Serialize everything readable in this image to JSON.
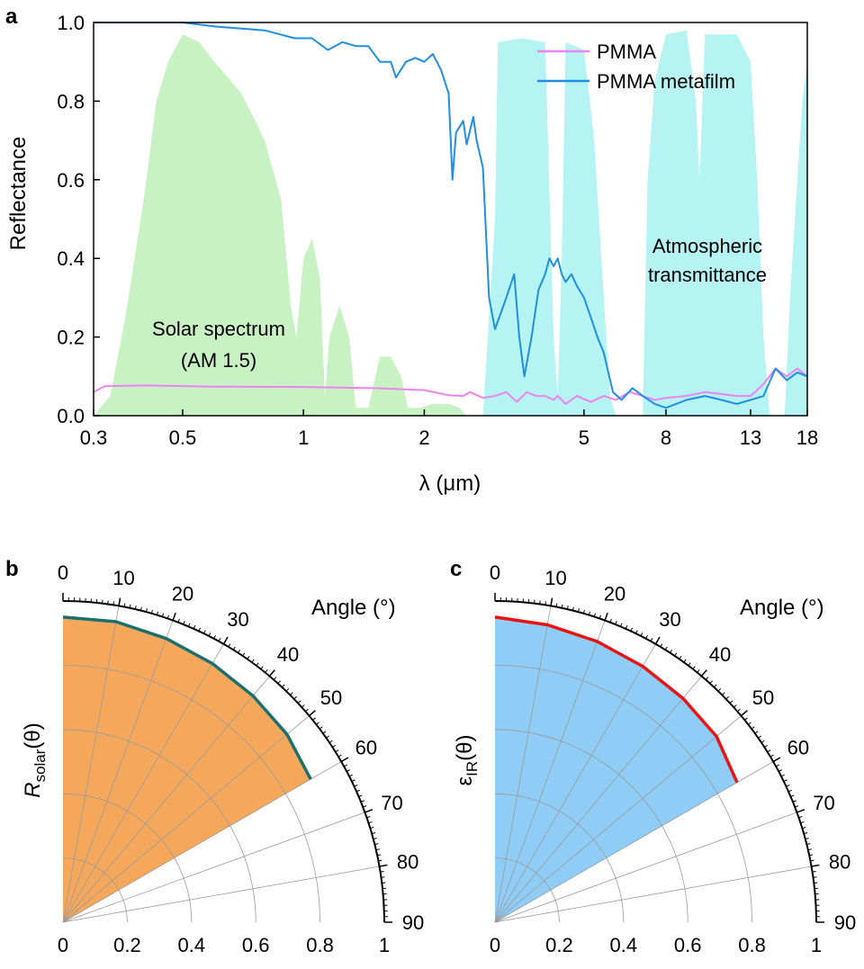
{
  "chart_data": [
    {
      "panel": "a",
      "type": "line",
      "xscale": "log",
      "xlim": [
        0.3,
        18
      ],
      "ylim": [
        0,
        1.0
      ],
      "xlabel": "λ (μm)",
      "ylabel": "Reflectance",
      "x_ticks": [
        0.3,
        0.5,
        1,
        2,
        5,
        8,
        13,
        18
      ],
      "x_tick_labels": [
        "0.3",
        "0.5",
        "1",
        "2",
        "5",
        "8",
        "13",
        "18"
      ],
      "y_ticks": [
        0.0,
        0.2,
        0.4,
        0.6,
        0.8,
        1.0
      ],
      "y_tick_labels": [
        "0.0",
        "0.2",
        "0.4",
        "0.6",
        "0.8",
        "1.0"
      ],
      "legend": [
        "PMMA",
        "PMMA metafilm"
      ],
      "annotations": {
        "solar_line1": "Solar spectrum",
        "solar_line2": "(AM 1.5)",
        "atmo_line1": "Atmospheric",
        "atmo_line2": "transmittance"
      },
      "background_areas": [
        {
          "name": "Solar spectrum (AM 1.5)",
          "color": "#c9f2c4",
          "points": [
            [
              0.3,
              0.0
            ],
            [
              0.33,
              0.05
            ],
            [
              0.36,
              0.25
            ],
            [
              0.4,
              0.55
            ],
            [
              0.43,
              0.8
            ],
            [
              0.46,
              0.9
            ],
            [
              0.5,
              0.97
            ],
            [
              0.55,
              0.95
            ],
            [
              0.6,
              0.9
            ],
            [
              0.7,
              0.82
            ],
            [
              0.75,
              0.76
            ],
            [
              0.8,
              0.7
            ],
            [
              0.88,
              0.55
            ],
            [
              0.93,
              0.28
            ],
            [
              0.96,
              0.2
            ],
            [
              1.0,
              0.4
            ],
            [
              1.05,
              0.45
            ],
            [
              1.1,
              0.35
            ],
            [
              1.13,
              0.05
            ],
            [
              1.16,
              0.2
            ],
            [
              1.23,
              0.28
            ],
            [
              1.3,
              0.2
            ],
            [
              1.35,
              0.02
            ],
            [
              1.45,
              0.02
            ],
            [
              1.55,
              0.15
            ],
            [
              1.65,
              0.15
            ],
            [
              1.75,
              0.1
            ],
            [
              1.82,
              0.02
            ],
            [
              1.95,
              0.02
            ],
            [
              2.1,
              0.03
            ],
            [
              2.3,
              0.03
            ],
            [
              2.45,
              0.02
            ],
            [
              2.55,
              0.0
            ]
          ]
        },
        {
          "name": "Atmospheric transmittance",
          "color": "#b6f4f4",
          "points": [
            [
              2.8,
              0.0
            ],
            [
              3.0,
              0.5
            ],
            [
              3.05,
              0.95
            ],
            [
              3.5,
              0.96
            ],
            [
              4.0,
              0.95
            ],
            [
              4.2,
              0.2
            ],
            [
              4.3,
              0.05
            ],
            [
              4.4,
              0.4
            ],
            [
              4.5,
              0.95
            ],
            [
              5.0,
              0.93
            ],
            [
              5.3,
              0.7
            ],
            [
              5.6,
              0.3
            ],
            [
              5.8,
              0.05
            ],
            [
              6.0,
              0.0
            ],
            [
              7.0,
              0.0
            ],
            [
              7.2,
              0.6
            ],
            [
              7.5,
              0.85
            ],
            [
              8.0,
              0.97
            ],
            [
              9.0,
              0.98
            ],
            [
              9.5,
              0.8
            ],
            [
              9.7,
              0.6
            ],
            [
              10.0,
              0.97
            ],
            [
              12.0,
              0.97
            ],
            [
              13.0,
              0.9
            ],
            [
              13.5,
              0.6
            ],
            [
              14.0,
              0.2
            ],
            [
              14.5,
              0.0
            ],
            [
              15.8,
              0.0
            ],
            [
              16.3,
              0.3
            ],
            [
              17.0,
              0.6
            ],
            [
              17.5,
              0.8
            ],
            [
              18.0,
              0.9
            ]
          ]
        }
      ],
      "series": [
        {
          "name": "PMMA",
          "color": "#ee82ee",
          "points": [
            [
              0.3,
              0.06
            ],
            [
              0.32,
              0.075
            ],
            [
              0.4,
              0.077
            ],
            [
              0.6,
              0.074
            ],
            [
              1.0,
              0.073
            ],
            [
              1.5,
              0.07
            ],
            [
              2.0,
              0.065
            ],
            [
              2.3,
              0.052
            ],
            [
              2.5,
              0.05
            ],
            [
              2.6,
              0.06
            ],
            [
              2.8,
              0.045
            ],
            [
              3.0,
              0.05
            ],
            [
              3.2,
              0.06
            ],
            [
              3.4,
              0.035
            ],
            [
              3.6,
              0.06
            ],
            [
              3.8,
              0.05
            ],
            [
              4.0,
              0.05
            ],
            [
              4.2,
              0.04
            ],
            [
              4.3,
              0.05
            ],
            [
              4.5,
              0.03
            ],
            [
              4.8,
              0.05
            ],
            [
              5.2,
              0.035
            ],
            [
              5.6,
              0.05
            ],
            [
              6.0,
              0.04
            ],
            [
              6.5,
              0.06
            ],
            [
              7.0,
              0.05
            ],
            [
              7.5,
              0.04
            ],
            [
              8.0,
              0.045
            ],
            [
              9.0,
              0.05
            ],
            [
              10.0,
              0.06
            ],
            [
              11.0,
              0.055
            ],
            [
              12.0,
              0.05
            ],
            [
              13.0,
              0.05
            ],
            [
              14.0,
              0.08
            ],
            [
              15.0,
              0.12
            ],
            [
              16.0,
              0.1
            ],
            [
              17.0,
              0.12
            ],
            [
              18.0,
              0.1
            ]
          ]
        },
        {
          "name": "PMMA metafilm",
          "color": "#1f8fe0",
          "points": [
            [
              0.3,
              1.0
            ],
            [
              0.5,
              1.0
            ],
            [
              0.6,
              0.99
            ],
            [
              0.8,
              0.98
            ],
            [
              0.95,
              0.96
            ],
            [
              1.05,
              0.96
            ],
            [
              1.15,
              0.93
            ],
            [
              1.25,
              0.95
            ],
            [
              1.35,
              0.94
            ],
            [
              1.45,
              0.94
            ],
            [
              1.55,
              0.9
            ],
            [
              1.65,
              0.9
            ],
            [
              1.7,
              0.86
            ],
            [
              1.8,
              0.9
            ],
            [
              1.9,
              0.91
            ],
            [
              2.0,
              0.9
            ],
            [
              2.1,
              0.92
            ],
            [
              2.2,
              0.88
            ],
            [
              2.3,
              0.82
            ],
            [
              2.35,
              0.6
            ],
            [
              2.4,
              0.72
            ],
            [
              2.5,
              0.75
            ],
            [
              2.55,
              0.69
            ],
            [
              2.65,
              0.76
            ],
            [
              2.7,
              0.7
            ],
            [
              2.8,
              0.63
            ],
            [
              2.9,
              0.3
            ],
            [
              3.0,
              0.22
            ],
            [
              3.1,
              0.26
            ],
            [
              3.2,
              0.3
            ],
            [
              3.35,
              0.36
            ],
            [
              3.45,
              0.2
            ],
            [
              3.55,
              0.1
            ],
            [
              3.7,
              0.2
            ],
            [
              3.85,
              0.32
            ],
            [
              4.0,
              0.36
            ],
            [
              4.1,
              0.4
            ],
            [
              4.2,
              0.38
            ],
            [
              4.3,
              0.4
            ],
            [
              4.4,
              0.36
            ],
            [
              4.5,
              0.34
            ],
            [
              4.65,
              0.36
            ],
            [
              4.8,
              0.33
            ],
            [
              5.0,
              0.3
            ],
            [
              5.2,
              0.25
            ],
            [
              5.4,
              0.2
            ],
            [
              5.6,
              0.16
            ],
            [
              5.9,
              0.06
            ],
            [
              6.2,
              0.04
            ],
            [
              6.6,
              0.07
            ],
            [
              7.0,
              0.05
            ],
            [
              7.5,
              0.03
            ],
            [
              8.0,
              0.02
            ],
            [
              9.0,
              0.04
            ],
            [
              10.0,
              0.05
            ],
            [
              11.0,
              0.04
            ],
            [
              12.0,
              0.03
            ],
            [
              13.0,
              0.04
            ],
            [
              14.0,
              0.05
            ],
            [
              15.0,
              0.12
            ],
            [
              16.0,
              0.09
            ],
            [
              17.0,
              0.11
            ],
            [
              18.0,
              0.1
            ]
          ]
        }
      ]
    },
    {
      "panel": "b",
      "type": "polar",
      "ylabel_main": "R",
      "ylabel_sub": "solar",
      "ylabel_tail": "(θ)",
      "angle_label": "Angle (°)",
      "angle_ticks": [
        "0",
        "10",
        "20",
        "30",
        "40",
        "50",
        "60",
        "70",
        "80",
        "90"
      ],
      "radial_ticks": [
        "0",
        "0.2",
        "0.4",
        "0.6",
        "0.8",
        "1"
      ],
      "fill_color": "#f5a85c",
      "line_color": "#1a7070",
      "angles": [
        0,
        10,
        20,
        30,
        40,
        50,
        60
      ],
      "values": [
        0.95,
        0.95,
        0.94,
        0.93,
        0.92,
        0.91,
        0.89
      ]
    },
    {
      "panel": "c",
      "type": "polar",
      "ylabel_main": "ε",
      "ylabel_sub": "IR",
      "ylabel_tail": "(θ)",
      "angle_label": "Angle (°)",
      "angle_ticks": [
        "0",
        "10",
        "20",
        "30",
        "40",
        "50",
        "60",
        "70",
        "80",
        "90"
      ],
      "radial_ticks": [
        "0",
        "0.2",
        "0.4",
        "0.6",
        "0.8",
        "1"
      ],
      "fill_color": "#8fcdf7",
      "line_color": "#ee1111",
      "angles": [
        0,
        10,
        20,
        30,
        40,
        50,
        60
      ],
      "values": [
        0.95,
        0.94,
        0.93,
        0.92,
        0.91,
        0.9,
        0.87
      ]
    }
  ],
  "panels": {
    "a": "a",
    "b": "b",
    "c": "c"
  }
}
